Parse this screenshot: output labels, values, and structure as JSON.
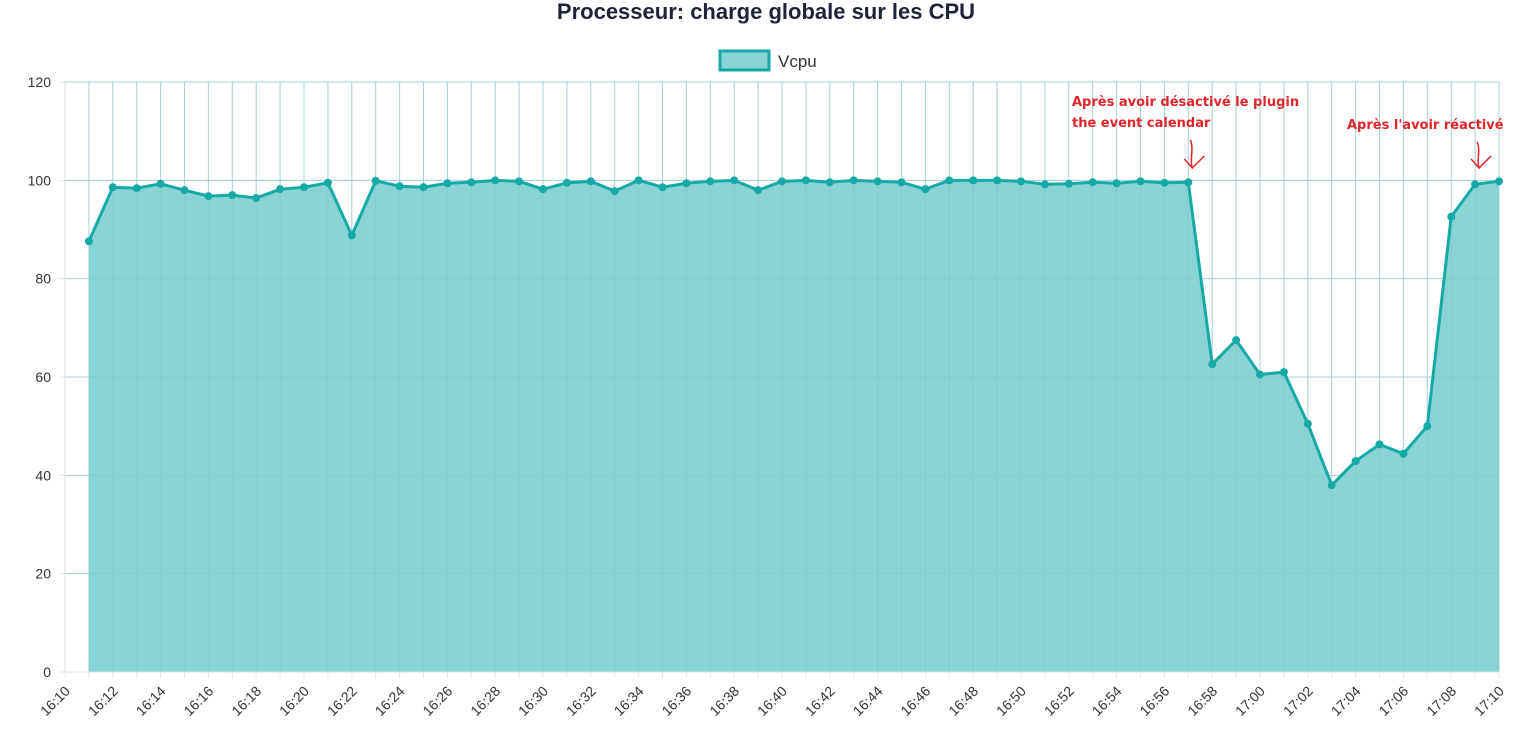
{
  "chart_data": {
    "type": "area",
    "title": "Processeur: charge globale sur les CPU",
    "xlabel": "",
    "ylabel": "",
    "ylim": [
      0,
      120
    ],
    "y_ticks": [
      0,
      20,
      40,
      60,
      80,
      100,
      120
    ],
    "x_range_minutes": [
      0,
      60
    ],
    "x_tick_labels": [
      "16:10",
      "16:12",
      "16:14",
      "16:16",
      "16:18",
      "16:20",
      "16:22",
      "16:24",
      "16:26",
      "16:28",
      "16:30",
      "16:32",
      "16:34",
      "16:36",
      "16:38",
      "16:40",
      "16:42",
      "16:44",
      "16:46",
      "16:48",
      "16:50",
      "16:52",
      "16:54",
      "16:56",
      "16:58",
      "17:00",
      "17:02",
      "17:04",
      "17:06",
      "17:08",
      "17:10"
    ],
    "grid": true,
    "legend_position": "top-center",
    "series": [
      {
        "name": "Vcpu",
        "color": "#17a9a8",
        "fill_color": "#88d3d5",
        "x_minutes": [
          1,
          2,
          3,
          4,
          5,
          6,
          7,
          8,
          9,
          10,
          11,
          12,
          13,
          14,
          15,
          16,
          17,
          18,
          19,
          20,
          21,
          22,
          23,
          24,
          25,
          26,
          27,
          28,
          29,
          30,
          31,
          32,
          33,
          34,
          35,
          36,
          37,
          38,
          39,
          40,
          41,
          42,
          43,
          44,
          45,
          46,
          47,
          48,
          49,
          50,
          51,
          52,
          53,
          54,
          55,
          56,
          57,
          58,
          59,
          60
        ],
        "values": [
          87.6,
          98.6,
          98.4,
          99.3,
          98.0,
          96.8,
          97.0,
          96.4,
          98.2,
          98.6,
          99.5,
          88.8,
          99.9,
          98.8,
          98.6,
          99.4,
          99.6,
          100.0,
          99.8,
          98.2,
          99.5,
          99.8,
          97.8,
          100.0,
          98.6,
          99.4,
          99.8,
          100.0,
          98.0,
          99.8,
          100.0,
          99.6,
          100.0,
          99.8,
          99.6,
          98.2,
          100.0,
          100.0,
          100.0,
          99.8,
          99.2,
          99.3,
          99.6,
          99.4,
          99.8,
          99.5,
          99.6,
          62.6,
          67.5,
          60.5,
          61.0,
          50.5,
          38.0,
          42.9,
          46.3,
          44.4,
          50.0,
          92.6,
          99.2,
          99.8
        ]
      }
    ],
    "annotations": [
      {
        "lines": [
          "Après avoir désactivé le plugin",
          "the event calendar"
        ],
        "color": "#e0262b",
        "points_to_x_minutes": 47
      },
      {
        "lines": [
          "Après l'avoir réactivé"
        ],
        "color": "#e0262b",
        "points_to_x_minutes": 59
      }
    ]
  }
}
